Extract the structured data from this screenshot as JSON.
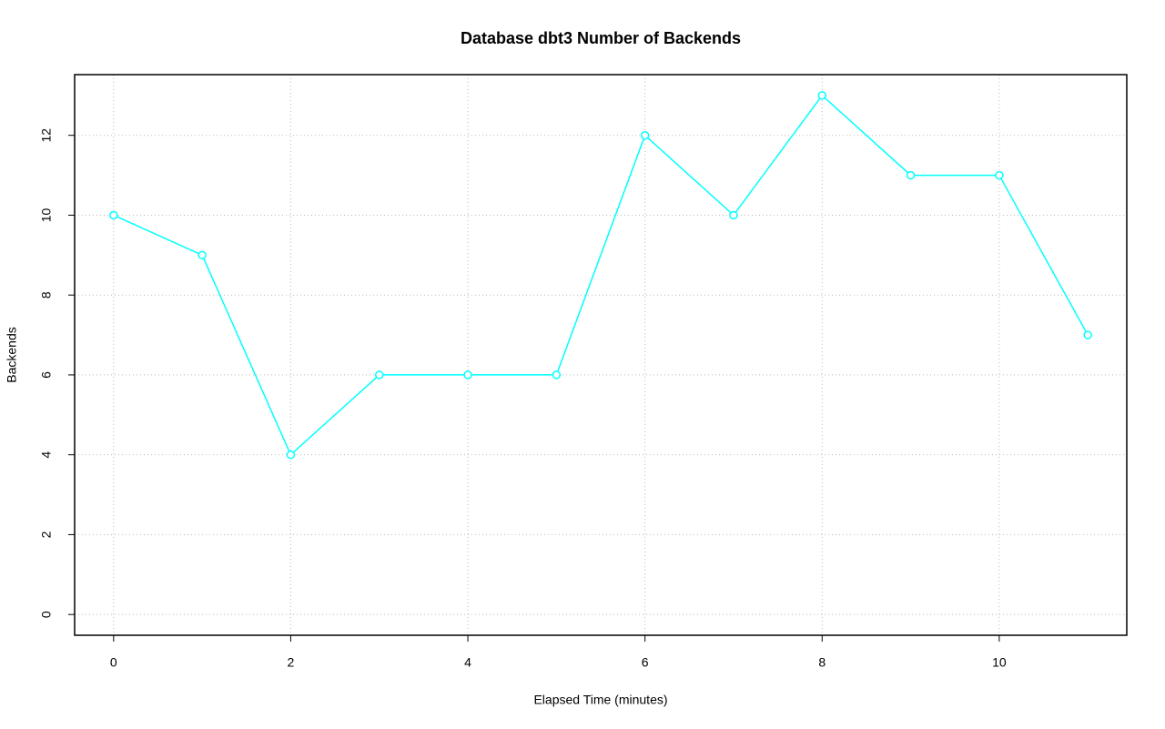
{
  "chart_data": {
    "type": "line",
    "title": "Database dbt3 Number of Backends",
    "x_label": "Elapsed Time (minutes)",
    "y_label": "Backends",
    "x": [
      0,
      1,
      2,
      3,
      4,
      5,
      6,
      7,
      8,
      9,
      10,
      11
    ],
    "values": [
      10,
      9,
      4,
      6,
      6,
      6,
      12,
      10,
      13,
      11,
      11,
      7
    ],
    "color": "#00ffff",
    "xlim": [
      -0.44,
      11.44
    ],
    "ylim": [
      -0.52,
      13.52
    ],
    "xticks": [
      0,
      2,
      4,
      6,
      8,
      10
    ],
    "yticks": [
      0,
      2,
      4,
      6,
      8,
      10,
      12
    ],
    "grid": true
  }
}
